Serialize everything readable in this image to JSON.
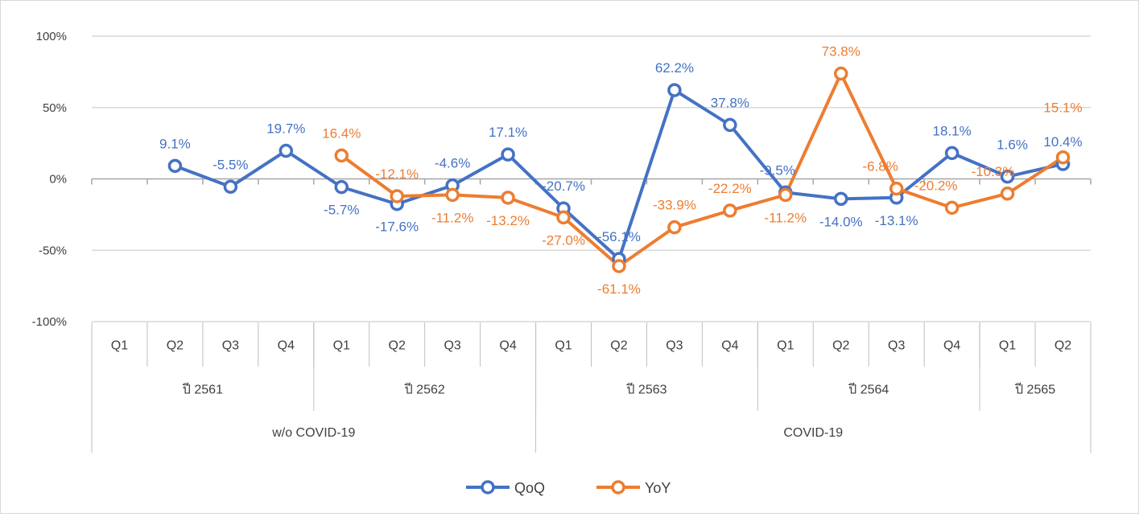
{
  "chart_data": {
    "type": "line",
    "title": "",
    "xlabel": "",
    "ylabel": "",
    "ylim": [
      -100,
      100
    ],
    "yticks": [
      "100%",
      "50%",
      "0%",
      "-50%",
      "-100%"
    ],
    "ytick_values": [
      100,
      50,
      0,
      -50,
      -100
    ],
    "grid": true,
    "legend_position": "bottom",
    "categories": [
      "Q1",
      "Q2",
      "Q3",
      "Q4",
      "Q1",
      "Q2",
      "Q3",
      "Q4",
      "Q1",
      "Q2",
      "Q3",
      "Q4",
      "Q1",
      "Q2",
      "Q3",
      "Q4",
      "Q1",
      "Q2"
    ],
    "years": [
      {
        "label": "ปี 2561",
        "span": 4
      },
      {
        "label": "ปี 2562",
        "span": 4
      },
      {
        "label": "ปี 2563",
        "span": 4
      },
      {
        "label": "ปี 2564",
        "span": 4
      },
      {
        "label": "ปี 2565",
        "span": 2
      }
    ],
    "groups": [
      {
        "label": "w/o COVID-19",
        "span": 8
      },
      {
        "label": "COVID-19",
        "span": 10
      }
    ],
    "series": [
      {
        "name": "QoQ",
        "color": "#4472C4",
        "values": [
          null,
          9.1,
          -5.5,
          19.7,
          -5.7,
          -17.6,
          -4.6,
          17.1,
          -20.7,
          -56.1,
          62.2,
          37.8,
          -9.5,
          -14.0,
          -13.1,
          18.1,
          1.6,
          10.4
        ],
        "labels": [
          null,
          "9.1%",
          "-5.5%",
          "19.7%",
          "-5.7%",
          "-17.6%",
          "-4.6%",
          "17.1%",
          "-20.7%",
          "-56.1%",
          "62.2%",
          "37.8%",
          "-9.5%",
          "-14.0%",
          "-13.1%",
          "18.1%",
          "1.6%",
          "10.4%"
        ]
      },
      {
        "name": "YoY",
        "color": "#ED7D31",
        "values": [
          null,
          null,
          null,
          null,
          16.4,
          -12.1,
          -11.2,
          -13.2,
          -27.0,
          -61.1,
          -33.9,
          -22.2,
          -11.2,
          73.8,
          -6.8,
          -20.2,
          -10.3,
          15.1
        ],
        "labels": [
          null,
          null,
          null,
          null,
          "16.4%",
          "-12.1%",
          "-11.2%",
          "-13.2%",
          "-27.0%",
          "-61.1%",
          "-33.9%",
          "-22.2%",
          "-11.2%",
          "73.8%",
          "-6.8%",
          "-20.2%",
          "-10.3%",
          "15.1%"
        ]
      }
    ]
  }
}
